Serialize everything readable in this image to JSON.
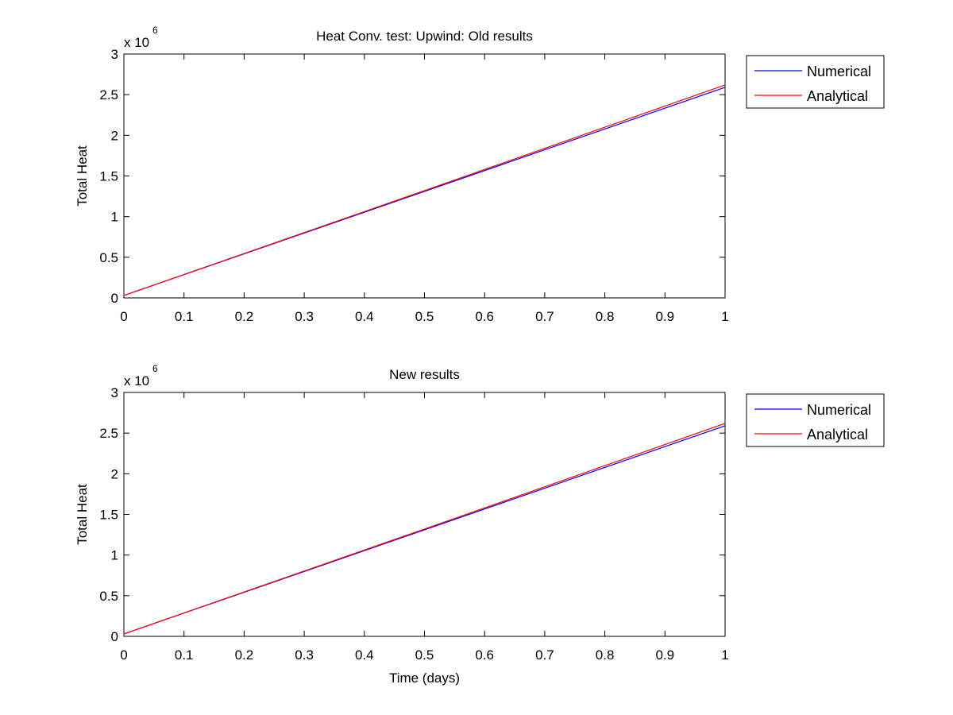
{
  "figure": {
    "background": "#ffffff"
  },
  "chart_data": [
    {
      "type": "line",
      "title": "Heat Conv. test: Upwind: Old results",
      "xlabel": "",
      "ylabel": "Total Heat",
      "xlim": [
        0,
        1
      ],
      "ylim": [
        0,
        3000000
      ],
      "x_ticks": [
        "0",
        "0.1",
        "0.2",
        "0.3",
        "0.4",
        "0.5",
        "0.6",
        "0.7",
        "0.8",
        "0.9",
        "1"
      ],
      "y_ticks": [
        "0",
        "0.5",
        "1",
        "1.5",
        "2",
        "2.5",
        "3"
      ],
      "y_exponent_base": "x 10",
      "y_exponent": "6",
      "grid": false,
      "legend_position": "outside-right-top",
      "series": [
        {
          "name": "Numerical",
          "color": "#0000ff",
          "x": [
            0,
            0.5,
            1
          ],
          "y": [
            30000,
            1310000,
            2590000
          ]
        },
        {
          "name": "Analytical",
          "color": "#ff0000",
          "x": [
            0,
            0.5,
            1
          ],
          "y": [
            30000,
            1320000,
            2620000
          ]
        }
      ]
    },
    {
      "type": "line",
      "title": "New results",
      "xlabel": "Time (days)",
      "ylabel": "Total Heat",
      "xlim": [
        0,
        1
      ],
      "ylim": [
        0,
        3000000
      ],
      "x_ticks": [
        "0",
        "0.1",
        "0.2",
        "0.3",
        "0.4",
        "0.5",
        "0.6",
        "0.7",
        "0.8",
        "0.9",
        "1"
      ],
      "y_ticks": [
        "0",
        "0.5",
        "1",
        "1.5",
        "2",
        "2.5",
        "3"
      ],
      "y_exponent_base": "x 10",
      "y_exponent": "6",
      "grid": false,
      "legend_position": "outside-right-top",
      "series": [
        {
          "name": "Numerical",
          "color": "#0000ff",
          "x": [
            0,
            0.5,
            1
          ],
          "y": [
            30000,
            1310000,
            2590000
          ]
        },
        {
          "name": "Analytical",
          "color": "#ff0000",
          "x": [
            0,
            0.5,
            1
          ],
          "y": [
            30000,
            1320000,
            2620000
          ]
        }
      ]
    }
  ]
}
